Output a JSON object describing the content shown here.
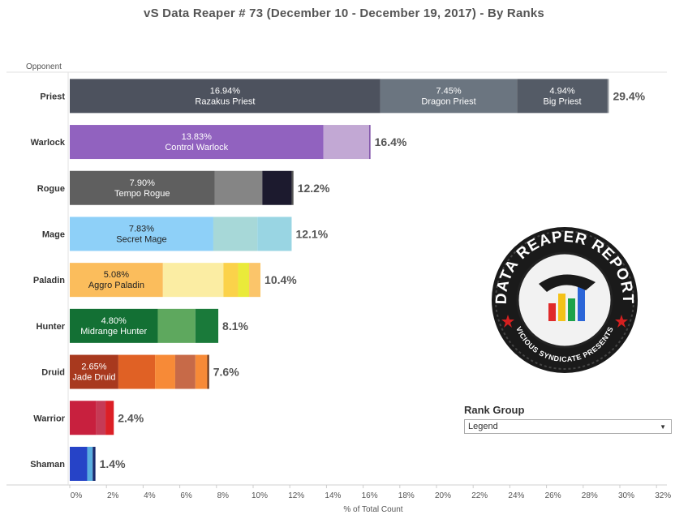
{
  "title": "vS Data Reaper #  73 (December 10 - December 19, 2017) - By Ranks",
  "legend_panel": {
    "title": "Rank Group",
    "selected": "Legend"
  },
  "logo": {
    "top_text": "DATA REAPER REPORT",
    "bottom_text": "VICIOUS SYNDICATE PRESENTS"
  },
  "chart_data": {
    "type": "bar",
    "orientation": "horizontal",
    "stacked": true,
    "title": "vS Data Reaper #  73 (December 10 - December 19, 2017) - By Ranks",
    "ylabel": "Opponent",
    "xlabel": "% of Total Count",
    "xlim": [
      0,
      32
    ],
    "xticks": [
      "0%",
      "2%",
      "4%",
      "6%",
      "8%",
      "10%",
      "12%",
      "14%",
      "16%",
      "18%",
      "20%",
      "22%",
      "24%",
      "26%",
      "28%",
      "30%",
      "32%"
    ],
    "grid": false,
    "categories": [
      "Priest",
      "Warlock",
      "Rogue",
      "Mage",
      "Paladin",
      "Hunter",
      "Druid",
      "Warrior",
      "Shaman"
    ],
    "totals": [
      "29.4%",
      "16.4%",
      "12.2%",
      "12.1%",
      "10.4%",
      "8.1%",
      "7.6%",
      "2.4%",
      "1.4%"
    ],
    "bars": [
      {
        "category": "Priest",
        "segments": [
          {
            "value": 16.94,
            "color": "#4d525e",
            "label": "16.94%",
            "name": "Razakus Priest",
            "text_color": "#ffffff"
          },
          {
            "value": 7.45,
            "color": "#6b7580",
            "label": "7.45%",
            "name": "Dragon Priest",
            "text_color": "#ffffff"
          },
          {
            "value": 4.94,
            "color": "#545b66",
            "label": "4.94%",
            "name": "Big Priest",
            "text_color": "#ffffff"
          },
          {
            "value": 0.07,
            "color": "#8e9399"
          }
        ]
      },
      {
        "category": "Warlock",
        "segments": [
          {
            "value": 13.83,
            "color": "#9162bf",
            "label": "13.83%",
            "name": "Control Warlock",
            "text_color": "#ffffff"
          },
          {
            "value": 2.5,
            "color": "#c2a8d4"
          },
          {
            "value": 0.07,
            "color": "#7d4fa8"
          }
        ]
      },
      {
        "category": "Rogue",
        "segments": [
          {
            "value": 7.9,
            "color": "#5f5f5f",
            "label": "7.90%",
            "name": "Tempo Rogue",
            "text_color": "#ffffff"
          },
          {
            "value": 2.6,
            "color": "#858585"
          },
          {
            "value": 1.6,
            "color": "#1c1a2e"
          },
          {
            "value": 0.1,
            "color": "#555555"
          }
        ]
      },
      {
        "category": "Mage",
        "segments": [
          {
            "value": 7.83,
            "color": "#8ed0f8",
            "label": "7.83%",
            "name": "Secret Mage",
            "text_color": "#222222"
          },
          {
            "value": 2.4,
            "color": "#a7d8d8"
          },
          {
            "value": 1.87,
            "color": "#99d5e3"
          }
        ]
      },
      {
        "category": "Paladin",
        "segments": [
          {
            "value": 5.08,
            "color": "#fbbd5c",
            "label": "5.08%",
            "name": "Aggro Paladin",
            "text_color": "#222222"
          },
          {
            "value": 3.3,
            "color": "#fbeda3"
          },
          {
            "value": 0.8,
            "color": "#fbd24a"
          },
          {
            "value": 0.6,
            "color": "#eaea3a"
          },
          {
            "value": 0.62,
            "color": "#fbc56a"
          }
        ]
      },
      {
        "category": "Hunter",
        "segments": [
          {
            "value": 4.8,
            "color": "#137034",
            "label": "4.80%",
            "name": "Midrange Hunter",
            "text_color": "#ffffff"
          },
          {
            "value": 2.05,
            "color": "#5ea85e"
          },
          {
            "value": 1.25,
            "color": "#1a7a3a"
          }
        ]
      },
      {
        "category": "Druid",
        "segments": [
          {
            "value": 2.65,
            "color": "#a8391e",
            "label": "2.65%",
            "name": "Jade Druid",
            "text_color": "#ffffff"
          },
          {
            "value": 2.0,
            "color": "#e06125"
          },
          {
            "value": 1.1,
            "color": "#f78a37"
          },
          {
            "value": 1.1,
            "color": "#c76a48"
          },
          {
            "value": 0.65,
            "color": "#f78a37"
          },
          {
            "value": 0.1,
            "color": "#6b3a20"
          }
        ]
      },
      {
        "category": "Warrior",
        "segments": [
          {
            "value": 1.45,
            "color": "#c8203e"
          },
          {
            "value": 0.5,
            "color": "#c63a55"
          },
          {
            "value": 0.45,
            "color": "#dc1f26"
          }
        ]
      },
      {
        "category": "Shaman",
        "segments": [
          {
            "value": 0.95,
            "color": "#2643c7"
          },
          {
            "value": 0.3,
            "color": "#5aaee0"
          },
          {
            "value": 0.15,
            "color": "#1a2a6e"
          }
        ]
      }
    ]
  }
}
